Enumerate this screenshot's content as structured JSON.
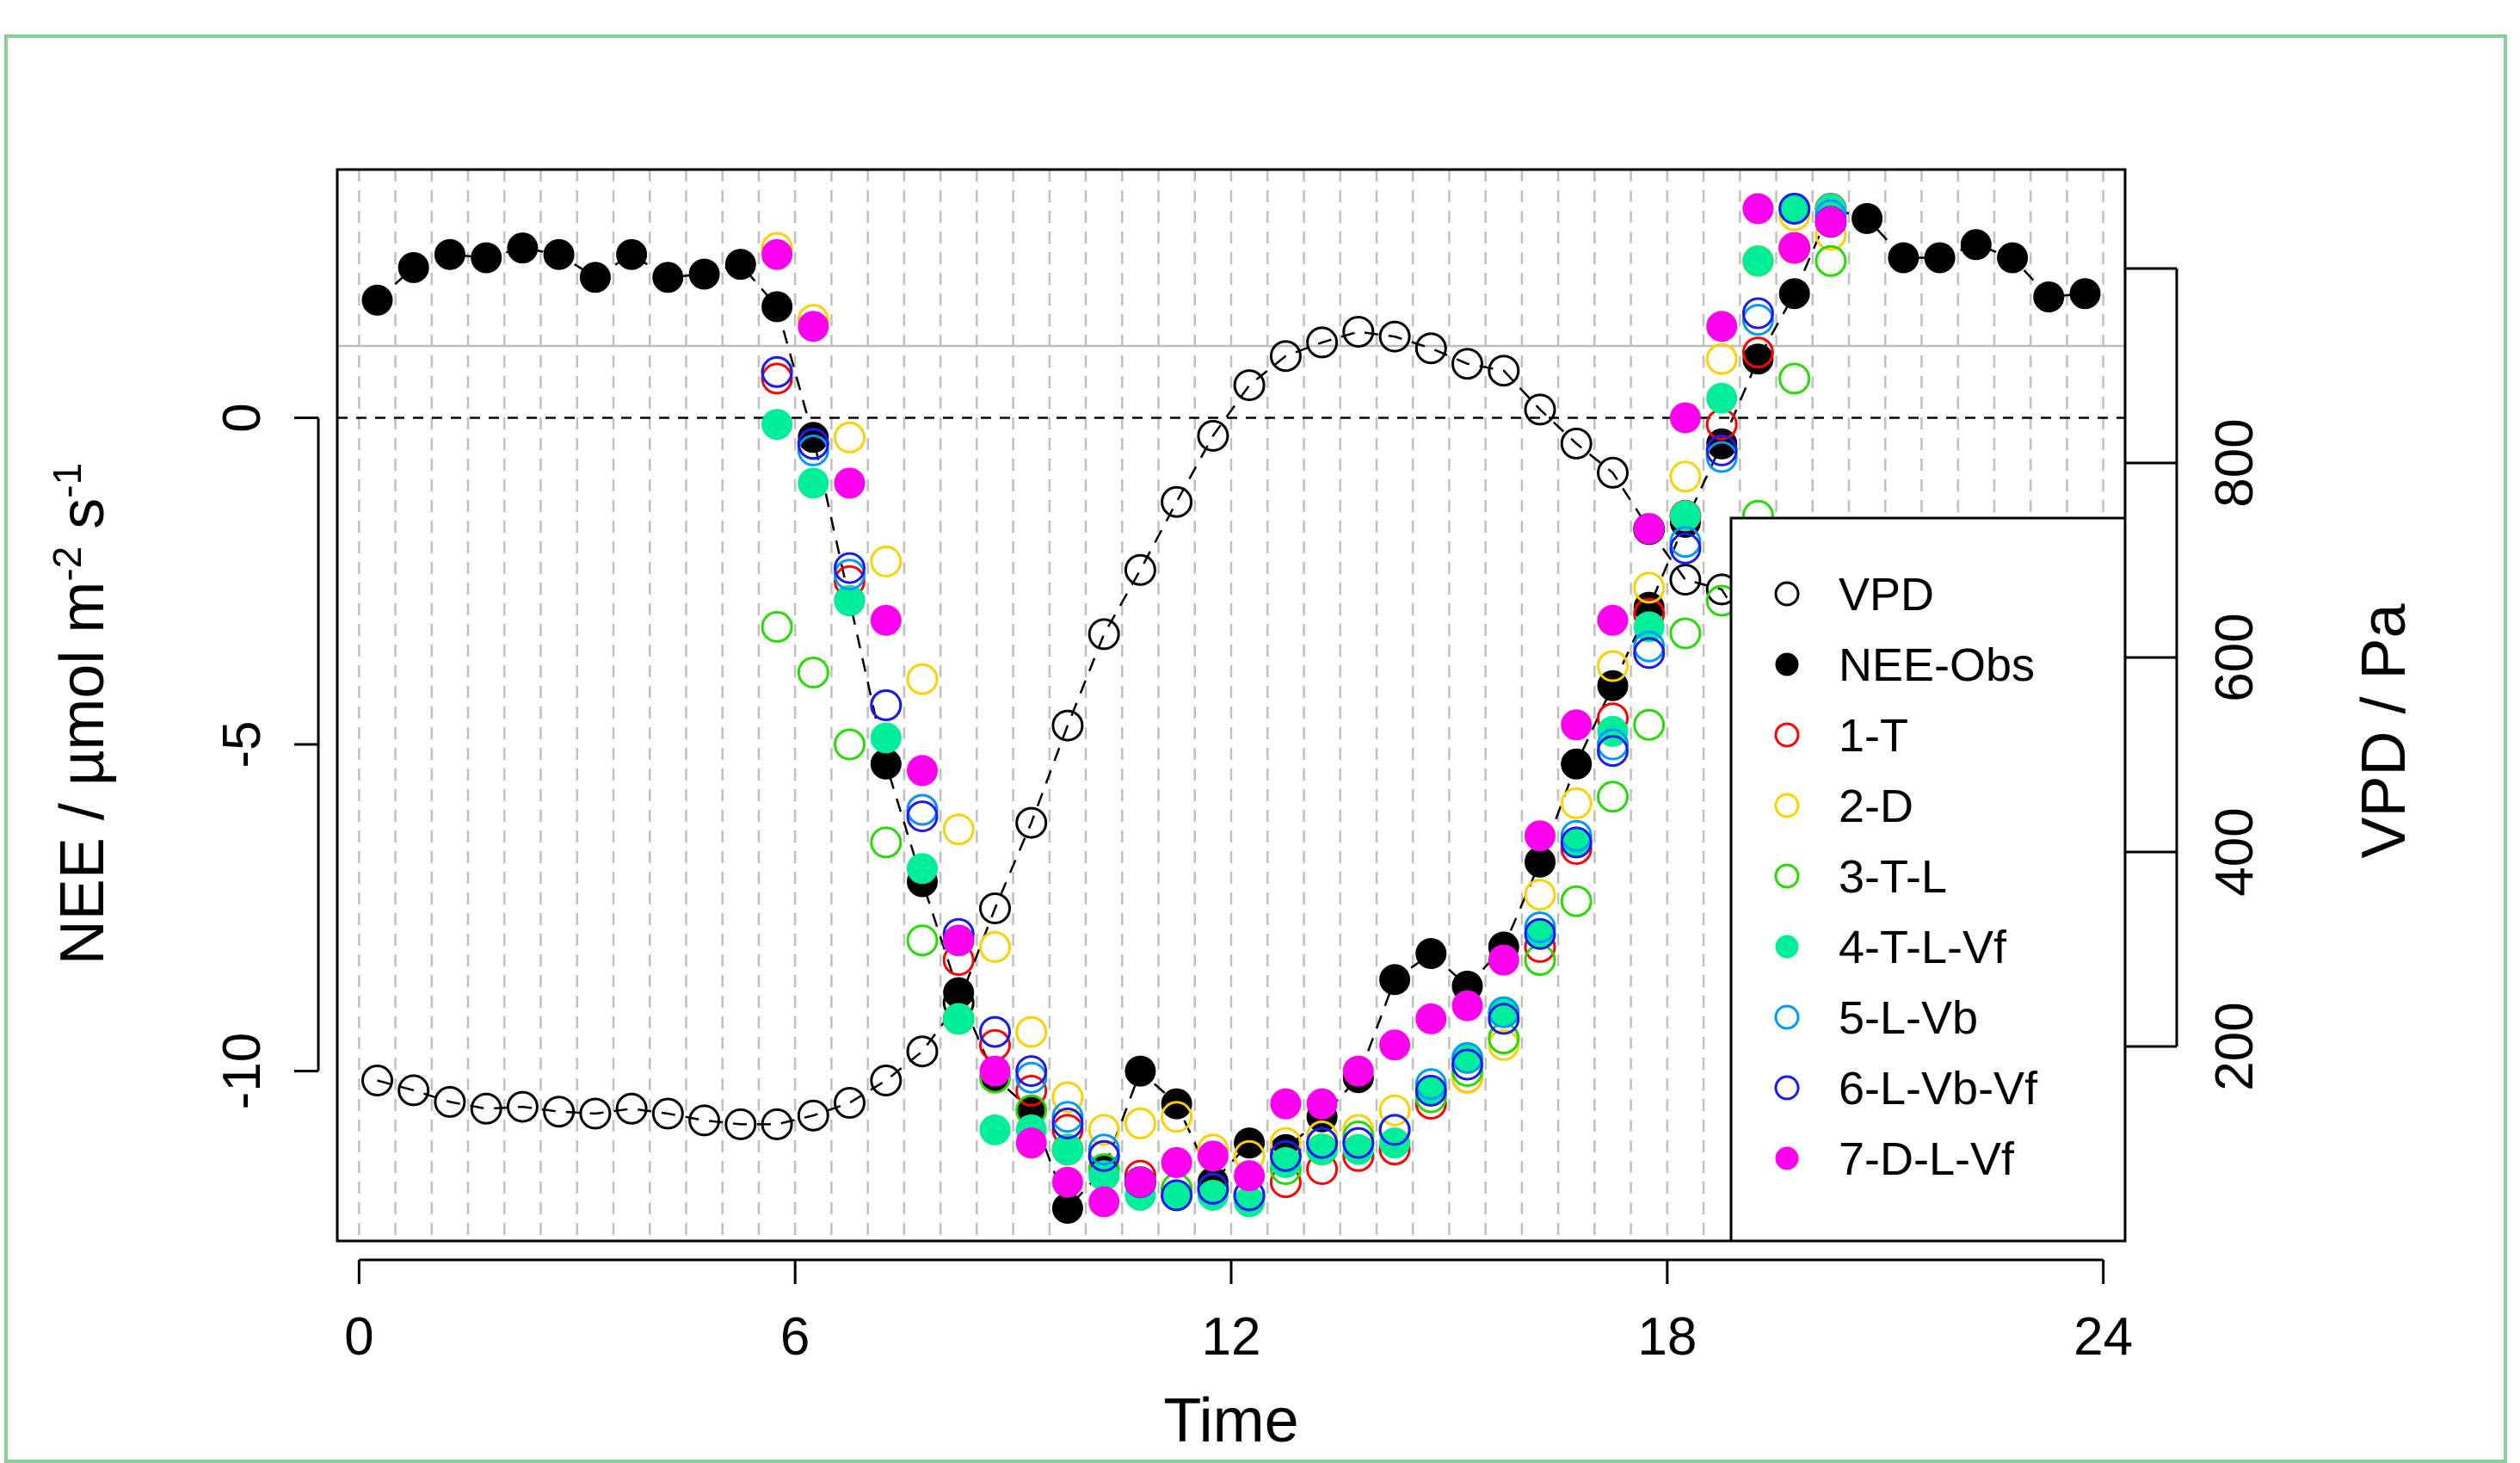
{
  "chart_data": {
    "type": "scatter",
    "title": "",
    "xlabel": "Time",
    "ylabel_left": [
      "NEE / µmol m",
      "-2",
      " s",
      "-1"
    ],
    "ylabel_right": "VPD / Pa",
    "xlim": [
      -0.3,
      24.3
    ],
    "ylim_left": [
      -12.6,
      3.8
    ],
    "ylim_right": [
      0,
      1100
    ],
    "x_ticks": [
      0,
      6,
      12,
      18,
      24
    ],
    "x_tick_labels": [
      "0",
      "6",
      "12",
      "18",
      "24"
    ],
    "y_left_ticks": [
      0,
      -5,
      -10
    ],
    "y_left_tick_labels": [
      "0",
      "-5",
      "-10"
    ],
    "y_right_ticks": [
      200,
      400,
      600,
      800
    ],
    "y_right_tick_labels": [
      "200",
      "400",
      "600",
      "800"
    ],
    "vgrid": [
      0,
      0.5,
      1,
      1.5,
      2,
      2.5,
      3,
      3.5,
      4,
      4.5,
      5,
      5.5,
      6,
      6.5,
      7,
      7.5,
      8,
      8.5,
      9,
      9.5,
      10,
      10.5,
      11,
      11.5,
      12,
      12.5,
      13,
      13.5,
      14,
      14.5,
      15,
      15.5,
      16,
      16.5,
      17,
      17.5,
      18,
      18.5,
      19,
      19.5,
      20,
      20.5,
      21,
      21.5,
      22,
      22.5,
      23,
      23.5,
      24
    ],
    "hline_zero": 0,
    "hline_top_grey": 1.1,
    "legend_position": "bottom-right",
    "colors": {
      "vpd": "#000000",
      "obs": "#000000",
      "m1": "#ff0000",
      "m2": "#ffd000",
      "m3": "#22dd00",
      "m4": "#00ee99",
      "m5": "#0099ff",
      "m6": "#1a1aee",
      "m7": "#ff00ee",
      "frame": "#86cf98",
      "grid": "#c0c0c0"
    },
    "series": [
      {
        "key": "vpd",
        "name": "VPD",
        "axis": "right",
        "style": "open",
        "line": true,
        "x": [
          0.25,
          0.75,
          1.25,
          1.75,
          2.25,
          2.75,
          3.25,
          3.75,
          4.25,
          4.75,
          5.25,
          5.75,
          6.25,
          6.75,
          7.25,
          7.75,
          8.25,
          8.75,
          9.25,
          9.75,
          10.25,
          10.75,
          11.25,
          11.75,
          12.25,
          12.75,
          13.25,
          13.75,
          14.25,
          14.75,
          15.25,
          15.75,
          16.25,
          16.75,
          17.25,
          17.75,
          18.25,
          18.75,
          19.25
        ],
        "y": [
          165,
          155,
          143,
          136,
          138,
          133,
          131,
          136,
          131,
          124,
          120,
          120,
          129,
          142,
          165,
          195,
          245,
          342,
          430,
          530,
          624,
          690,
          760,
          828,
          880,
          910,
          924,
          935,
          930,
          918,
          902,
          895,
          855,
          820,
          790,
          732,
          680,
          670,
          610
        ]
      },
      {
        "key": "obs",
        "name": "NEE-Obs",
        "axis": "left",
        "style": "filled",
        "line": true,
        "x": [
          0.25,
          0.75,
          1.25,
          1.75,
          2.25,
          2.75,
          3.25,
          3.75,
          4.25,
          4.75,
          5.25,
          5.75,
          6.25,
          6.75,
          7.25,
          7.75,
          8.25,
          8.75,
          9.25,
          9.75,
          10.25,
          10.75,
          11.25,
          11.75,
          12.25,
          12.75,
          13.25,
          13.75,
          14.25,
          14.75,
          15.25,
          15.75,
          16.25,
          16.75,
          17.25,
          17.75,
          18.25,
          18.75,
          19.25,
          19.75,
          20.25,
          20.75,
          21.25,
          21.75,
          22.25,
          22.75,
          23.25,
          23.75
        ],
        "y": [
          1.8,
          2.3,
          2.5,
          2.45,
          2.6,
          2.5,
          2.15,
          2.5,
          2.15,
          2.2,
          2.35,
          1.7,
          -0.3,
          -2.8,
          -5.3,
          -7.1,
          -8.8,
          -10.1,
          -10.6,
          -12.1,
          -11.5,
          -10.0,
          -10.5,
          -11.7,
          -11.1,
          -11.2,
          -10.7,
          -10.1,
          -8.6,
          -8.2,
          -8.7,
          -8.1,
          -6.8,
          -5.3,
          -4.1,
          -2.9,
          -1.6,
          -0.4,
          0.9,
          1.9,
          3.2,
          3.05,
          2.45,
          2.45,
          2.65,
          2.45,
          1.85,
          1.9
        ]
      },
      {
        "key": "m1",
        "name": "1-T",
        "axis": "left",
        "style": "open",
        "line": false,
        "x": [
          5.75,
          6.25,
          6.75,
          7.25,
          7.75,
          8.25,
          8.75,
          9.25,
          9.75,
          10.25,
          10.75,
          11.25,
          11.75,
          12.25,
          12.75,
          13.25,
          13.75,
          14.25,
          14.75,
          15.25,
          15.75,
          16.25,
          16.75,
          17.25,
          17.75,
          18.25,
          18.75,
          19.25,
          19.75,
          20.25
        ],
        "y": [
          0.6,
          -0.4,
          -2.5,
          -4.4,
          -6.0,
          -8.3,
          -9.6,
          -10.3,
          -10.9,
          -11.3,
          -11.6,
          -11.8,
          -11.8,
          -11.9,
          -11.7,
          -11.5,
          -11.3,
          -11.2,
          -10.5,
          -10.1,
          -9.5,
          -8.1,
          -6.6,
          -4.6,
          -3.0,
          -1.5,
          -0.1,
          1.0,
          2.6,
          3.2
        ]
      },
      {
        "key": "m2",
        "name": "2-D",
        "axis": "left",
        "style": "open",
        "line": false,
        "x": [
          5.75,
          6.25,
          6.75,
          7.25,
          7.75,
          8.25,
          8.75,
          9.25,
          9.75,
          10.25,
          10.75,
          11.25,
          11.75,
          12.25,
          12.75,
          13.25,
          13.75,
          14.25,
          14.75,
          15.25,
          15.75,
          16.25,
          16.75,
          17.25,
          17.75,
          18.25,
          18.75,
          19.25,
          19.75,
          20.25
        ],
        "y": [
          2.6,
          1.5,
          -0.3,
          -2.2,
          -4.0,
          -6.3,
          -8.1,
          -9.4,
          -10.4,
          -10.9,
          -10.8,
          -10.7,
          -11.2,
          -11.3,
          -11.1,
          -11.0,
          -10.9,
          -10.6,
          -10.3,
          -10.1,
          -9.6,
          -7.3,
          -5.9,
          -3.8,
          -2.6,
          -0.9,
          0.9,
          2.4,
          3.1,
          2.8
        ]
      },
      {
        "key": "m3",
        "name": "3-T-L",
        "axis": "left",
        "style": "open",
        "line": false,
        "x": [
          5.75,
          6.25,
          6.75,
          7.25,
          7.75,
          8.25,
          8.75,
          9.25,
          9.75,
          10.25,
          10.75,
          11.25,
          11.75,
          12.25,
          12.75,
          13.25,
          13.75,
          14.25,
          14.75,
          15.25,
          15.75,
          16.25,
          16.75,
          17.25,
          17.75,
          18.25,
          18.75,
          19.25,
          19.75,
          20.25
        ],
        "y": [
          -3.2,
          -3.9,
          -5.0,
          -6.5,
          -8.0,
          -9.2,
          -10.1,
          -10.6,
          -11.2,
          -11.5,
          -11.7,
          -11.8,
          -11.8,
          -11.9,
          -11.5,
          -11.2,
          -11.0,
          -10.9,
          -10.4,
          -10.0,
          -9.5,
          -8.3,
          -7.4,
          -5.8,
          -4.7,
          -3.3,
          -2.8,
          -1.5,
          0.6,
          2.4
        ]
      },
      {
        "key": "m4",
        "name": "4-T-L-Vf",
        "axis": "left",
        "style": "filled",
        "line": false,
        "x": [
          5.75,
          6.25,
          6.75,
          7.25,
          7.75,
          8.25,
          8.75,
          9.25,
          9.75,
          10.25,
          10.75,
          11.25,
          11.75,
          12.25,
          12.75,
          13.25,
          13.75,
          14.25,
          14.75,
          15.25,
          15.75,
          16.25,
          16.75,
          17.25,
          17.75,
          18.25,
          18.75,
          19.25,
          19.75,
          20.25
        ],
        "y": [
          -0.1,
          -1.0,
          -2.8,
          -4.9,
          -6.9,
          -9.2,
          -10.9,
          -10.9,
          -11.2,
          -11.6,
          -11.9,
          -11.9,
          -11.9,
          -12.0,
          -11.4,
          -11.2,
          -11.2,
          -11.1,
          -10.3,
          -9.8,
          -9.1,
          -7.9,
          -6.5,
          -4.8,
          -3.2,
          -1.5,
          0.3,
          2.4,
          3.2,
          3.2
        ]
      },
      {
        "key": "m5",
        "name": "5-L-Vb",
        "axis": "left",
        "style": "open",
        "line": false,
        "x": [
          5.75,
          6.25,
          6.75,
          7.25,
          7.75,
          8.25,
          8.75,
          9.25,
          9.75,
          10.25,
          10.75,
          11.25,
          11.75,
          12.25,
          12.75,
          13.25,
          13.75,
          14.25,
          14.75,
          15.25,
          15.75,
          16.25,
          16.75,
          17.25,
          17.75,
          18.25,
          18.75,
          19.25,
          19.75,
          20.25
        ],
        "y": [
          0.7,
          -0.5,
          -2.4,
          -4.4,
          -6.0,
          -8.0,
          -9.4,
          -10.1,
          -10.7,
          -11.2,
          -11.7,
          -11.9,
          -11.8,
          -11.9,
          -11.3,
          -11.1,
          -11.1,
          -10.9,
          -10.2,
          -9.8,
          -9.1,
          -7.8,
          -6.4,
          -5.0,
          -3.5,
          -1.9,
          -0.6,
          1.5,
          3.2,
          3.1
        ]
      },
      {
        "key": "m6",
        "name": "6-L-Vb-Vf",
        "axis": "left",
        "style": "open",
        "line": false,
        "x": [
          5.75,
          6.25,
          6.75,
          7.25,
          7.75,
          8.25,
          8.75,
          9.25,
          9.75,
          10.25,
          10.75,
          11.25,
          11.75,
          12.25,
          12.75,
          13.25,
          13.75,
          14.25,
          14.75,
          15.25,
          15.75,
          16.25,
          16.75,
          17.25,
          17.75,
          18.25,
          18.75,
          19.25,
          19.75,
          20.25
        ],
        "y": [
          0.7,
          -0.4,
          -2.3,
          -4.4,
          -6.1,
          -7.9,
          -9.4,
          -10.0,
          -10.8,
          -11.3,
          -11.7,
          -11.9,
          -11.8,
          -11.9,
          -11.3,
          -11.1,
          -11.1,
          -10.9,
          -10.3,
          -9.9,
          -9.2,
          -7.9,
          -6.5,
          -5.1,
          -3.6,
          -2.0,
          -0.5,
          1.6,
          3.2,
          3.0
        ]
      },
      {
        "key": "m7",
        "name": "7-D-L-Vf",
        "axis": "left",
        "style": "filled",
        "line": false,
        "x": [
          5.75,
          6.25,
          6.75,
          7.25,
          7.75,
          8.25,
          8.75,
          9.25,
          9.75,
          10.25,
          10.75,
          11.25,
          11.75,
          12.25,
          12.75,
          13.25,
          13.75,
          14.25,
          14.75,
          15.25,
          15.75,
          16.25,
          16.75,
          17.25,
          17.75,
          18.25,
          18.75,
          19.25,
          19.75,
          20.25
        ],
        "y": [
          2.5,
          1.4,
          -1.0,
          -3.1,
          -5.4,
          -8.0,
          -10.0,
          -11.1,
          -11.7,
          -12.0,
          -11.7,
          -11.4,
          -11.3,
          -11.6,
          -10.5,
          -10.5,
          -10.0,
          -9.6,
          -9.2,
          -9.0,
          -8.3,
          -6.4,
          -4.7,
          -3.1,
          -1.7,
          0.0,
          1.4,
          3.2,
          2.6,
          3.0
        ]
      }
    ]
  }
}
